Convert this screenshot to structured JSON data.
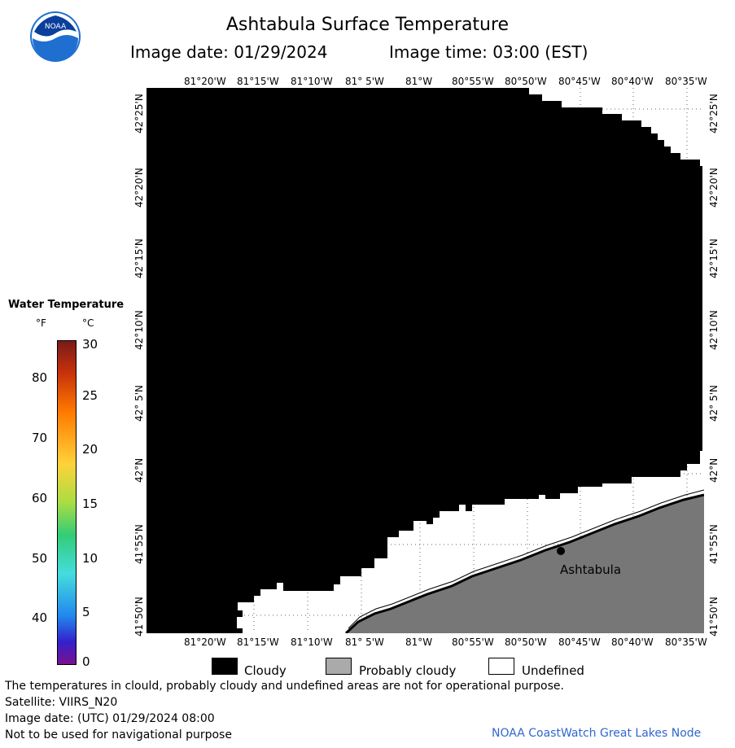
{
  "header": {
    "title": "Ashtabula Surface Temperature",
    "image_date": "Image date: 01/29/2024",
    "image_time": "Image time: 03:00 (EST)"
  },
  "logo": {
    "text": "NOAA",
    "icon": "noaa-logo-icon"
  },
  "map": {
    "lon_labels": [
      "81°20'W",
      "81°15'W",
      "81°10'W",
      "81° 5'W",
      "81°W",
      "80°55'W",
      "80°50'W",
      "80°45'W",
      "80°40'W",
      "80°35'W"
    ],
    "lat_labels": [
      "42°25'N",
      "42°20'N",
      "42°15'N",
      "42°10'N",
      "42° 5'N",
      "42°N",
      "41°55'N",
      "41°50'N"
    ],
    "city_label": "Ashtabula",
    "colors": {
      "cloudy": "#000000",
      "land": "#777777",
      "undefined": "#ffffff"
    }
  },
  "legend": {
    "title": "Water Temperature",
    "unit_f": "°F",
    "unit_c": "°C",
    "f_ticks": [
      "80",
      "70",
      "60",
      "50",
      "40"
    ],
    "c_ticks": [
      "30",
      "25",
      "20",
      "15",
      "10",
      "5",
      "0"
    ]
  },
  "key": {
    "cloudy": "Cloudy",
    "probably_cloudy": "Probably cloudy",
    "undefined": "Undefined"
  },
  "footer": {
    "note": "The temperatures in clould, probably cloudy and undefined areas are not for operational purpose.",
    "satellite": "Satellite: VIIRS_N20",
    "utc_date": "Image date: (UTC) 01/29/2024  08:00",
    "nav_warning": "Not to be used for navigational purpose",
    "credit": "NOAA CoastWatch Great Lakes Node"
  }
}
